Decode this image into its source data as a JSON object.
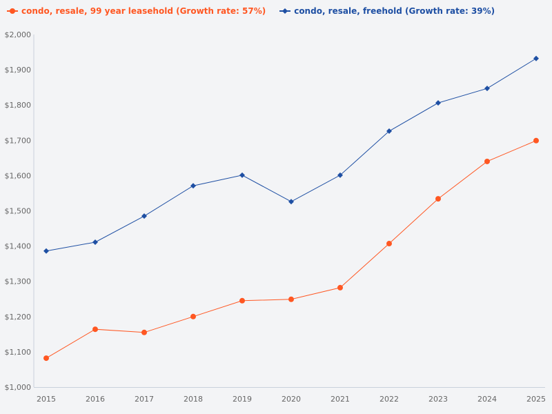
{
  "chart_data": {
    "type": "line",
    "title": "",
    "xlabel": "",
    "ylabel": "",
    "x": [
      2015,
      2016,
      2017,
      2018,
      2019,
      2020,
      2021,
      2022,
      2023,
      2024,
      2025
    ],
    "ylim": [
      1000,
      2000
    ],
    "yticks": [
      1000,
      1100,
      1200,
      1300,
      1400,
      1500,
      1600,
      1700,
      1800,
      1900,
      2000
    ],
    "ytick_labels": [
      "$1,000",
      "$1,100",
      "$1,200",
      "$1,300",
      "$1,400",
      "$1,500",
      "$1,600",
      "$1,700",
      "$1,800",
      "$1,900",
      "$2,000"
    ],
    "grid": false,
    "legend_placement": "top-left",
    "series": [
      {
        "name": "condo, resale, 99 year leasehold (Growth rate: 57%)",
        "color": "#ff5722",
        "marker": "circle",
        "values": [
          1082,
          1164,
          1155,
          1200,
          1245,
          1249,
          1282,
          1407,
          1534,
          1640,
          1699
        ]
      },
      {
        "name": "condo, resale, freehold (Growth rate: 39%)",
        "color": "#1e4fa3",
        "marker": "diamond",
        "values": [
          1386,
          1411,
          1485,
          1571,
          1601,
          1526,
          1601,
          1726,
          1806,
          1847,
          1932
        ]
      }
    ]
  }
}
